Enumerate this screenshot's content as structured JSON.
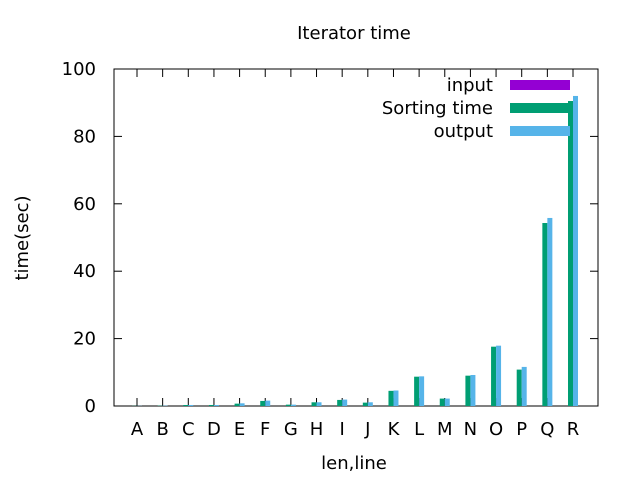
{
  "chart_data": {
    "type": "bar",
    "title": "Iterator time",
    "xlabel": "len,line",
    "ylabel": "time(sec)",
    "ylim": [
      0,
      100
    ],
    "yticks": [
      0,
      20,
      40,
      60,
      80,
      100
    ],
    "grid": false,
    "legend_position": "top-right",
    "categories": [
      "A",
      "B",
      "C",
      "D",
      "E",
      "F",
      "G",
      "H",
      "I",
      "J",
      "K",
      "L",
      "M",
      "N",
      "O",
      "P",
      "Q",
      "R"
    ],
    "series": [
      {
        "name": "input",
        "color": "#9400d3",
        "values": [
          0,
          0,
          0,
          0,
          0,
          0,
          0,
          0,
          0,
          0,
          0,
          0,
          0,
          0,
          0,
          0,
          0,
          0
        ]
      },
      {
        "name": "Sorting time",
        "color": "#009e73",
        "values": [
          0.05,
          0.1,
          0.3,
          0.3,
          0.7,
          1.5,
          0.4,
          1.1,
          1.8,
          1.0,
          4.5,
          8.7,
          2.2,
          9.0,
          17.6,
          10.8,
          54.3,
          90.5
        ]
      },
      {
        "name": "output",
        "color": "#56b4e9",
        "values": [
          0.05,
          0.1,
          0.3,
          0.3,
          0.8,
          1.6,
          0.4,
          1.1,
          1.9,
          1.1,
          4.6,
          8.8,
          2.2,
          9.2,
          17.9,
          11.6,
          55.8,
          92.0
        ]
      }
    ]
  }
}
